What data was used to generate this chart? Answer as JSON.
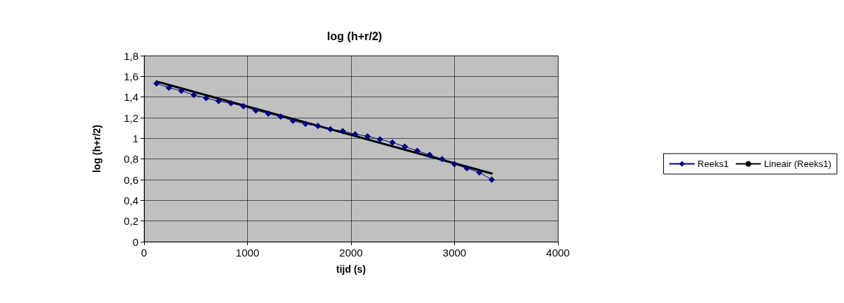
{
  "chart_data": {
    "type": "line",
    "title": "log (h+r/2)",
    "xlabel": "tijd (s)",
    "ylabel": "log (h+r/2)",
    "series": [
      {
        "name": "Reeks1",
        "color": "#000080",
        "marker": "diamond",
        "x": [
          120,
          240,
          360,
          480,
          600,
          720,
          840,
          960,
          1080,
          1200,
          1320,
          1440,
          1560,
          1680,
          1800,
          1920,
          2040,
          2160,
          2280,
          2400,
          2520,
          2640,
          2760,
          2880,
          3000,
          3120,
          3240,
          3360
        ],
        "values": [
          1.53,
          1.49,
          1.46,
          1.42,
          1.39,
          1.36,
          1.34,
          1.31,
          1.27,
          1.24,
          1.21,
          1.17,
          1.14,
          1.12,
          1.09,
          1.07,
          1.04,
          1.02,
          0.99,
          0.96,
          0.92,
          0.88,
          0.84,
          0.8,
          0.75,
          0.71,
          0.67,
          0.6
        ]
      },
      {
        "name": "Lineair (Reeks1)",
        "color": "#000000",
        "marker": "none",
        "x": [
          120,
          3360
        ],
        "values": [
          1.55,
          0.66
        ]
      }
    ],
    "xlim": [
      0,
      4000
    ],
    "xticks": [
      0,
      1000,
      2000,
      3000,
      4000
    ],
    "ylim": [
      0,
      1.8
    ],
    "yticks": [
      0,
      {
        "value": 0.2,
        "label": "0,2"
      },
      {
        "value": 0.4,
        "label": "0,4"
      },
      {
        "value": 0.6,
        "label": "0,6"
      },
      {
        "value": 0.8,
        "label": "0,8"
      },
      1,
      {
        "value": 1.2,
        "label": "1,2"
      },
      {
        "value": 1.4,
        "label": "1,4"
      },
      {
        "value": 1.6,
        "label": "1,6"
      },
      {
        "value": 1.8,
        "label": "1,8"
      }
    ],
    "grid": true,
    "legend": "right",
    "line_style": "solid"
  }
}
